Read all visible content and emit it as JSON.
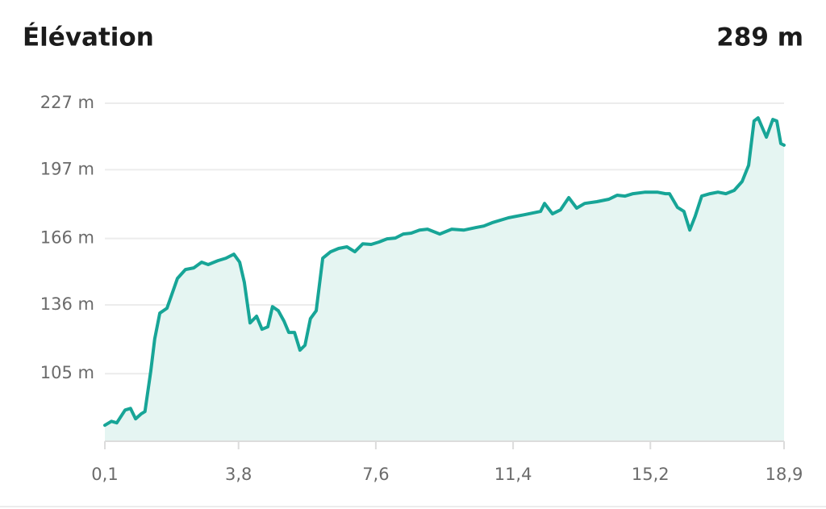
{
  "chart_data": {
    "type": "area",
    "title": "Élévation",
    "header_value": "289 m",
    "color": "#17a597",
    "fill": "#e5f5f2",
    "grid": true,
    "x": [
      0.1,
      0.28,
      0.43,
      0.66,
      0.81,
      0.95,
      1.1,
      1.21,
      1.37,
      1.48,
      1.62,
      1.82,
      2.11,
      2.33,
      2.56,
      2.78,
      2.96,
      3.23,
      3.45,
      3.67,
      3.83,
      3.96,
      4.12,
      4.3,
      4.45,
      4.61,
      4.74,
      4.9,
      5.06,
      5.19,
      5.35,
      5.5,
      5.64,
      5.79,
      5.95,
      6.13,
      6.35,
      6.57,
      6.8,
      7.02,
      7.24,
      7.47,
      7.69,
      7.91,
      8.14,
      8.36,
      8.58,
      8.81,
      9.03,
      9.37,
      9.7,
      10.04,
      10.37,
      10.59,
      10.82,
      11.27,
      11.71,
      12.16,
      12.27,
      12.49,
      12.71,
      12.94,
      13.16,
      13.38,
      13.72,
      14.05,
      14.28,
      14.5,
      14.72,
      15.06,
      15.39,
      15.62,
      15.73,
      15.95,
      16.13,
      16.29,
      16.44,
      16.62,
      16.85,
      17.07,
      17.29,
      17.52,
      17.74,
      17.92,
      18.07,
      18.18,
      18.41,
      18.59,
      18.7,
      18.81,
      18.9
    ],
    "values": [
      81.7,
      83.5,
      82.8,
      88.6,
      89.3,
      84.6,
      86.8,
      87.9,
      106.1,
      120.7,
      132.3,
      134.5,
      148.0,
      152.0,
      152.7,
      155.3,
      154.2,
      156.0,
      157.1,
      158.9,
      155.3,
      146.2,
      127.9,
      130.9,
      125.0,
      126.1,
      135.2,
      133.4,
      128.7,
      123.6,
      123.6,
      115.6,
      117.8,
      129.8,
      133.4,
      157.1,
      160.0,
      161.5,
      162.2,
      160.0,
      163.6,
      163.3,
      164.4,
      165.8,
      166.2,
      168.0,
      168.4,
      169.8,
      170.2,
      168.0,
      170.2,
      169.8,
      170.9,
      171.6,
      173.1,
      175.3,
      176.7,
      178.2,
      181.8,
      177.1,
      178.9,
      184.4,
      179.7,
      181.8,
      182.6,
      183.7,
      185.5,
      185.1,
      186.2,
      186.9,
      186.9,
      186.2,
      186.2,
      180.0,
      178.2,
      169.8,
      176.0,
      185.1,
      186.2,
      186.9,
      186.2,
      187.7,
      191.7,
      199.0,
      219.0,
      220.4,
      211.7,
      219.7,
      219.0,
      208.8,
      208.1
    ],
    "xlim": [
      0.1,
      18.9
    ],
    "xticks": [
      {
        "value": 0.1,
        "label": "0,1"
      },
      {
        "value": 3.8,
        "label": "3,8"
      },
      {
        "value": 7.6,
        "label": "7,6"
      },
      {
        "value": 11.4,
        "label": "11,4"
      },
      {
        "value": 15.2,
        "label": "15,2"
      },
      {
        "value": 18.9,
        "label": "18,9"
      }
    ],
    "ylim": [
      74.5,
      227
    ],
    "yticks": [
      {
        "value": 227,
        "label": "227 m"
      },
      {
        "value": 197,
        "label": "197 m"
      },
      {
        "value": 166,
        "label": "166 m"
      },
      {
        "value": 136,
        "label": "136 m"
      },
      {
        "value": 105,
        "label": "105 m"
      }
    ]
  }
}
